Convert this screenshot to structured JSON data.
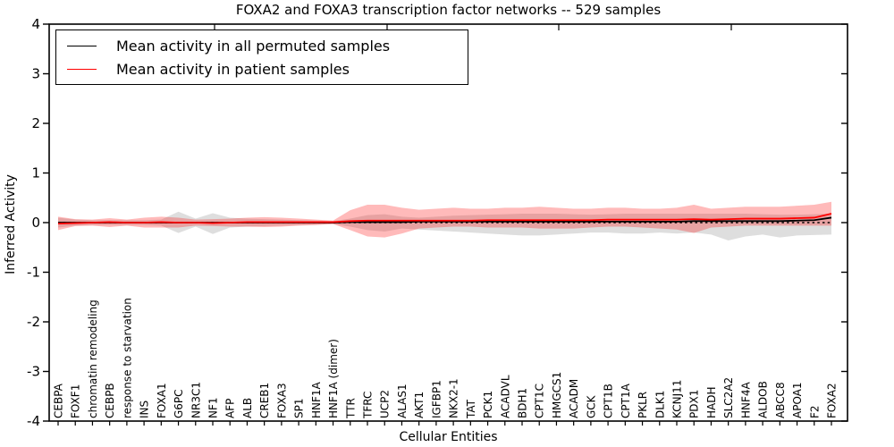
{
  "title": "FOXA2 and FOXA3 transcription factor networks -- 529 samples",
  "legend": {
    "entries": [
      {
        "label": "Mean activity in all permuted samples",
        "color": "#000000"
      },
      {
        "label": "Mean activity in patient samples",
        "color": "#ff0000"
      }
    ]
  },
  "chart_data": {
    "type": "line",
    "title": "FOXA2 and FOXA3 transcription factor networks -- 529 samples",
    "xlabel": "Cellular Entities",
    "ylabel": "Inferred Activity",
    "ylim": [
      -4,
      4
    ],
    "yticks": [
      4,
      3,
      2,
      1,
      0,
      -1,
      -2,
      -3,
      -4
    ],
    "grid": false,
    "legend_position": "upper left",
    "zero_line": {
      "y": 0,
      "style": "dashed",
      "color": "#000000"
    },
    "categories": [
      "CEBPA",
      "FOXF1",
      "chromatin remodeling",
      "CEBPB",
      "response to starvation",
      "INS",
      "FOXA1",
      "G6PC",
      "NR3C1",
      "NF1",
      "AFP",
      "ALB",
      "CREB1",
      "FOXA3",
      "SP1",
      "HNF1A",
      "HNF1A (dimer)",
      "TTR",
      "TFRC",
      "UCP2",
      "ALAS1",
      "AKT1",
      "IGFBP1",
      "NKX2-1",
      "TAT",
      "PCK1",
      "ACADVL",
      "BDH1",
      "CPT1C",
      "HMGCS1",
      "ACADM",
      "GCK",
      "CPT1B",
      "CPT1A",
      "PKLR",
      "DLK1",
      "KCNJ11",
      "PDX1",
      "HADH",
      "SLC2A2",
      "HNF4A",
      "ALDOB",
      "ABCC8",
      "APOA1",
      "F2",
      "FOXA2"
    ],
    "series": [
      {
        "name": "Mean activity in all permuted samples",
        "color": "#000000",
        "band_color": "rgba(0,0,0,0.13)",
        "values": [
          0,
          0,
          0,
          0,
          0,
          0,
          0,
          0,
          0,
          0,
          0,
          0,
          0,
          0,
          0,
          0,
          0,
          0.01,
          0.01,
          0.01,
          0.01,
          0.02,
          0.02,
          0.02,
          0.02,
          0.02,
          0.02,
          0.02,
          0.02,
          0.02,
          0.02,
          0.02,
          0.02,
          0.02,
          0.02,
          0.02,
          0.02,
          0.03,
          0.03,
          0.03,
          0.03,
          0.03,
          0.03,
          0.04,
          0.05,
          0.1
        ],
        "band_hi": [
          0.1,
          0.06,
          0.05,
          0.05,
          0.05,
          0.05,
          0.06,
          0.22,
          0.08,
          0.19,
          0.1,
          0.08,
          0.07,
          0.06,
          0.05,
          0.04,
          0.03,
          0.08,
          0.15,
          0.17,
          0.12,
          0.1,
          0.12,
          0.14,
          0.15,
          0.16,
          0.17,
          0.18,
          0.18,
          0.18,
          0.17,
          0.16,
          0.17,
          0.18,
          0.18,
          0.18,
          0.18,
          0.18,
          0.18,
          0.18,
          0.18,
          0.17,
          0.16,
          0.16,
          0.17,
          0.18
        ],
        "band_lo": [
          -0.1,
          -0.06,
          -0.05,
          -0.05,
          -0.05,
          -0.05,
          -0.06,
          -0.21,
          -0.08,
          -0.23,
          -0.1,
          -0.08,
          -0.07,
          -0.06,
          -0.05,
          -0.04,
          -0.03,
          -0.08,
          -0.15,
          -0.18,
          -0.12,
          -0.14,
          -0.16,
          -0.18,
          -0.2,
          -0.22,
          -0.24,
          -0.26,
          -0.26,
          -0.24,
          -0.22,
          -0.2,
          -0.2,
          -0.22,
          -0.22,
          -0.2,
          -0.22,
          -0.2,
          -0.24,
          -0.36,
          -0.28,
          -0.24,
          -0.3,
          -0.26,
          -0.25,
          -0.24
        ]
      },
      {
        "name": "Mean activity in patient samples",
        "color": "#ff0000",
        "band_color": "rgba(255,0,0,0.27)",
        "values": [
          -0.02,
          -0.01,
          0,
          0.01,
          0,
          0,
          0.01,
          0,
          0,
          -0.01,
          0,
          0.01,
          0.01,
          0.01,
          0.01,
          0.01,
          0.01,
          0.03,
          0.04,
          0.04,
          0.04,
          0.04,
          0.04,
          0.04,
          0.04,
          0.05,
          0.05,
          0.05,
          0.05,
          0.05,
          0.05,
          0.05,
          0.06,
          0.06,
          0.06,
          0.06,
          0.06,
          0.07,
          0.06,
          0.07,
          0.08,
          0.08,
          0.08,
          0.09,
          0.1,
          0.18
        ],
        "band_hi": [
          0.12,
          0.07,
          0.06,
          0.09,
          0.06,
          0.1,
          0.12,
          0.1,
          0.06,
          0.07,
          0.08,
          0.1,
          0.11,
          0.1,
          0.08,
          0.06,
          0.04,
          0.25,
          0.36,
          0.36,
          0.3,
          0.26,
          0.28,
          0.3,
          0.28,
          0.28,
          0.3,
          0.3,
          0.32,
          0.3,
          0.28,
          0.28,
          0.3,
          0.3,
          0.28,
          0.28,
          0.3,
          0.36,
          0.28,
          0.3,
          0.32,
          0.32,
          0.32,
          0.34,
          0.36,
          0.42
        ],
        "band_lo": [
          -0.15,
          -0.07,
          -0.06,
          -0.09,
          -0.06,
          -0.1,
          -0.1,
          -0.1,
          -0.06,
          -0.07,
          -0.08,
          -0.08,
          -0.09,
          -0.08,
          -0.06,
          -0.05,
          -0.03,
          -0.15,
          -0.28,
          -0.3,
          -0.22,
          -0.12,
          -0.1,
          -0.08,
          -0.08,
          -0.1,
          -0.1,
          -0.1,
          -0.12,
          -0.12,
          -0.12,
          -0.1,
          -0.08,
          -0.08,
          -0.1,
          -0.12,
          -0.14,
          -0.21,
          -0.1,
          -0.08,
          -0.06,
          -0.06,
          -0.06,
          -0.06,
          -0.06,
          -0.06
        ]
      }
    ]
  }
}
